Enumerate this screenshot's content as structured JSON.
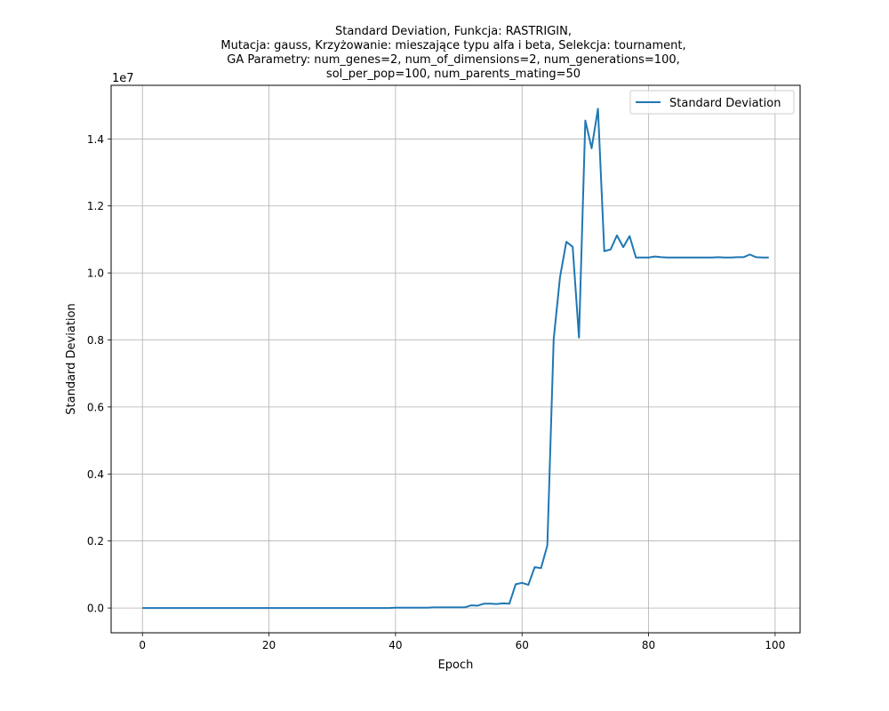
{
  "chart_data": {
    "type": "line",
    "title_lines": [
      "Standard Deviation, Funkcja: RASTRIGIN,",
      "Mutacja: gauss, Krzyżowanie: mieszające typu alfa i beta, Selekcja: tournament,",
      "GA Parametry: num_genes=2, num_of_dimensions=2, num_generations=100,",
      "sol_per_pop=100, num_parents_mating=50"
    ],
    "xlabel": "Epoch",
    "ylabel": "Standard Deviation",
    "y_scale_label": "1e7",
    "y_scale_factor": 10000000,
    "xlim": [
      -4.95,
      103.95
    ],
    "ylim": [
      -0.074,
      1.56
    ],
    "x_ticks": [
      0,
      20,
      40,
      60,
      80,
      100
    ],
    "y_ticks": [
      0.0,
      0.2,
      0.4,
      0.6,
      0.8,
      1.0,
      1.2,
      1.4
    ],
    "grid": true,
    "legend_position": "top-right",
    "series": [
      {
        "name": "Standard Deviation",
        "color": "#1f77b4",
        "x": [
          0,
          1,
          2,
          3,
          4,
          5,
          6,
          7,
          8,
          9,
          10,
          11,
          12,
          13,
          14,
          15,
          16,
          17,
          18,
          19,
          20,
          21,
          22,
          23,
          24,
          25,
          26,
          27,
          28,
          29,
          30,
          31,
          32,
          33,
          34,
          35,
          36,
          37,
          38,
          39,
          40,
          41,
          42,
          43,
          44,
          45,
          46,
          47,
          48,
          49,
          50,
          51,
          52,
          53,
          54,
          55,
          56,
          57,
          58,
          59,
          60,
          61,
          62,
          63,
          64,
          65,
          66,
          67,
          68,
          69,
          70,
          71,
          72,
          73,
          74,
          75,
          76,
          77,
          78,
          79,
          80,
          81,
          82,
          83,
          84,
          85,
          86,
          87,
          88,
          89,
          90,
          91,
          92,
          93,
          94,
          95,
          96,
          97,
          98,
          99
        ],
        "y": [
          0,
          0,
          0,
          0,
          0,
          0,
          0,
          0,
          0,
          0,
          0,
          0,
          0,
          0,
          0,
          0,
          0,
          0,
          0,
          0,
          0,
          0,
          0,
          0,
          0,
          0,
          0,
          0,
          0,
          0,
          0,
          0,
          0,
          0,
          0,
          0,
          0,
          0,
          0,
          0,
          0.001,
          0.001,
          0.001,
          0.001,
          0.001,
          0.001,
          0.002,
          0.002,
          0.002,
          0.002,
          0.002,
          0.002,
          0.008,
          0.007,
          0.013,
          0.013,
          0.012,
          0.014,
          0.013,
          0.071,
          0.075,
          0.069,
          0.122,
          0.119,
          0.187,
          0.802,
          0.987,
          1.093,
          1.078,
          0.807,
          1.455,
          1.372,
          1.49,
          1.065,
          1.07,
          1.112,
          1.077,
          1.11,
          1.046,
          1.046,
          1.046,
          1.049,
          1.047,
          1.046,
          1.046,
          1.046,
          1.046,
          1.046,
          1.046,
          1.046,
          1.046,
          1.047,
          1.046,
          1.046,
          1.047,
          1.047,
          1.055,
          1.047,
          1.046,
          1.046
        ]
      }
    ]
  }
}
